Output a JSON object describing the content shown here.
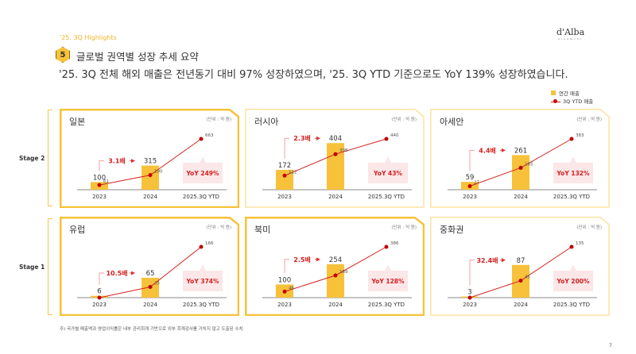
{
  "header": {
    "subtitle": "'25. 3Q Highlights",
    "logo": "d'Alba",
    "logo_sub": "piedmont",
    "section_number": "5",
    "section_title": "글로벌 권역별 성장 추세 요약",
    "headline": "'25. 3Q 전체 해외 매출은 전년동기 대비 97% 성장하였으며, '25. 3Q YTD 기준으로도 YoY 139% 성장하였습니다."
  },
  "legend": {
    "bar": "연간 매출",
    "line": "3Q YTD 매출"
  },
  "stages": [
    "Stage 2",
    "Stage 1"
  ],
  "colors": {
    "bar": "#f7c23a",
    "line": "#d42020",
    "strong_border": "#f7c23a",
    "light_border": "#fbe3a0",
    "yoy_bg": "#fbe6e8",
    "accent_text": "#d42020"
  },
  "unit": "(단위 : 억 원)",
  "chart_data": [
    {
      "type": "bar+line",
      "title": "일본",
      "categories": [
        "2023",
        "2024",
        "2025.3Q YTD"
      ],
      "bar_values": [
        100,
        315,
        null
      ],
      "line_values": [
        61,
        190,
        663
      ],
      "multiplier": "3.1배",
      "yoy": "YoY 249%",
      "highlight": true
    },
    {
      "type": "bar+line",
      "title": "러시아",
      "categories": [
        "2023",
        "2024",
        "2025.3Q YTD"
      ],
      "bar_values": [
        172,
        404,
        null
      ],
      "line_values": [
        122,
        308,
        440
      ],
      "multiplier": "2.3배",
      "yoy": "YoY 43%",
      "highlight": false
    },
    {
      "type": "bar+line",
      "title": "아세안",
      "categories": [
        "2023",
        "2024",
        "2025.3Q YTD"
      ],
      "bar_values": [
        59,
        261,
        null
      ],
      "line_values": [
        27,
        165,
        383
      ],
      "multiplier": "4.4배",
      "yoy": "YoY 132%",
      "highlight": false
    },
    {
      "type": "bar+line",
      "title": "유럽",
      "categories": [
        "2023",
        "2024",
        "2025.3Q YTD"
      ],
      "bar_values": [
        6,
        65,
        null
      ],
      "line_values": [
        null,
        35,
        166
      ],
      "multiplier": "10.5배",
      "yoy": "YoY 374%",
      "highlight": true
    },
    {
      "type": "bar+line",
      "title": "북미",
      "categories": [
        "2023",
        "2024",
        "2025.3Q YTD"
      ],
      "bar_values": [
        100,
        254,
        null
      ],
      "line_values": [
        46,
        169,
        386
      ],
      "multiplier": "2.5배",
      "yoy": "YoY 128%",
      "highlight": true
    },
    {
      "type": "bar+line",
      "title": "중화권",
      "categories": [
        "2023",
        "2024",
        "2025.3Q YTD"
      ],
      "bar_values": [
        3,
        87,
        null
      ],
      "line_values": [
        null,
        45,
        135
      ],
      "multiplier": "32.4배",
      "yoy": "YoY 200%",
      "highlight": false
    }
  ],
  "footnote": "주) 국가별 매출액과 영업이익률은 내부 관리회계 기반으로 외부 회계감사를 거치지 않고 도출된 수치",
  "page_number": "7"
}
